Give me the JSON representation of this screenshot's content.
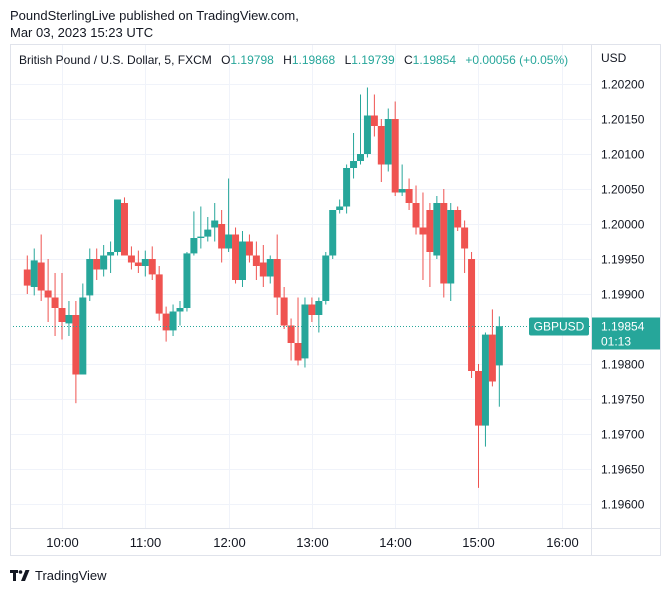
{
  "header": {
    "publisher_line": "PoundSterlingLive published on TradingView.com,",
    "date_line": "Mar 03, 2023 15:23 UTC"
  },
  "legend": {
    "symbol": "British Pound / U.S. Dollar, 5, FXCM",
    "o_label": "O",
    "o_value": "1.19798",
    "h_label": "H",
    "h_value": "1.19868",
    "l_label": "L",
    "l_value": "1.19739",
    "c_label": "C",
    "c_value": "1.19854",
    "change": "+0.00056 (+0.05%)"
  },
  "price_scale": {
    "currency": "USD",
    "ticks": [
      "1.20200",
      "1.20150",
      "1.20100",
      "1.20050",
      "1.20000",
      "1.19950",
      "1.19900",
      "1.19800",
      "1.19750",
      "1.19700",
      "1.19650",
      "1.19600"
    ]
  },
  "time_scale": {
    "ticks": [
      "10:00",
      "11:00",
      "12:00",
      "13:00",
      "14:00",
      "15:00",
      "16:00"
    ]
  },
  "last_price": {
    "symbol_badge": "GBPUSD",
    "price_badge": "1.19854",
    "countdown": "01:13"
  },
  "colors": {
    "up": "#26a69a",
    "down": "#ef5350",
    "grid": "#f0f3fa",
    "text": "#131722"
  },
  "footer": {
    "brand": "TradingView"
  },
  "chart_data": {
    "type": "candlestick",
    "interval_minutes": 5,
    "y_range": [
      1.19563,
      1.20258
    ],
    "x_range": [
      "09:35",
      "16:15"
    ],
    "candles": [
      {
        "t": "09:35",
        "o": 1.19935,
        "h": 1.19955,
        "l": 1.199,
        "c": 1.19912
      },
      {
        "t": "09:40",
        "o": 1.1991,
        "h": 1.19965,
        "l": 1.19898,
        "c": 1.19948
      },
      {
        "t": "09:45",
        "o": 1.19945,
        "h": 1.19985,
        "l": 1.1989,
        "c": 1.19905
      },
      {
        "t": "09:50",
        "o": 1.19905,
        "h": 1.1995,
        "l": 1.1986,
        "c": 1.19895
      },
      {
        "t": "09:55",
        "o": 1.19895,
        "h": 1.1993,
        "l": 1.1984,
        "c": 1.1988
      },
      {
        "t": "10:00",
        "o": 1.1988,
        "h": 1.1993,
        "l": 1.19835,
        "c": 1.1986
      },
      {
        "t": "10:05",
        "o": 1.19858,
        "h": 1.1989,
        "l": 1.1984,
        "c": 1.1987
      },
      {
        "t": "10:10",
        "o": 1.1987,
        "h": 1.1989,
        "l": 1.19744,
        "c": 1.19785
      },
      {
        "t": "10:15",
        "o": 1.19785,
        "h": 1.19915,
        "l": 1.19785,
        "c": 1.19895
      },
      {
        "t": "10:20",
        "o": 1.19898,
        "h": 1.19965,
        "l": 1.1989,
        "c": 1.1995
      },
      {
        "t": "10:25",
        "o": 1.1995,
        "h": 1.19965,
        "l": 1.1992,
        "c": 1.19935
      },
      {
        "t": "10:30",
        "o": 1.19935,
        "h": 1.1997,
        "l": 1.19925,
        "c": 1.19955
      },
      {
        "t": "10:35",
        "o": 1.19955,
        "h": 1.19975,
        "l": 1.1993,
        "c": 1.1996
      },
      {
        "t": "10:40",
        "o": 1.1996,
        "h": 1.20035,
        "l": 1.19955,
        "c": 1.20035
      },
      {
        "t": "10:45",
        "o": 1.2003,
        "h": 1.20038,
        "l": 1.19955,
        "c": 1.19955
      },
      {
        "t": "10:50",
        "o": 1.19955,
        "h": 1.19968,
        "l": 1.19935,
        "c": 1.19945
      },
      {
        "t": "10:55",
        "o": 1.19945,
        "h": 1.19962,
        "l": 1.1993,
        "c": 1.1994
      },
      {
        "t": "11:00",
        "o": 1.1994,
        "h": 1.19962,
        "l": 1.19925,
        "c": 1.1995
      },
      {
        "t": "11:05",
        "o": 1.1995,
        "h": 1.19968,
        "l": 1.1992,
        "c": 1.19928
      },
      {
        "t": "11:10",
        "o": 1.19928,
        "h": 1.1994,
        "l": 1.19862,
        "c": 1.19872
      },
      {
        "t": "11:15",
        "o": 1.19872,
        "h": 1.19882,
        "l": 1.19832,
        "c": 1.19848
      },
      {
        "t": "11:20",
        "o": 1.19848,
        "h": 1.19885,
        "l": 1.1984,
        "c": 1.19875
      },
      {
        "t": "11:25",
        "o": 1.19875,
        "h": 1.1989,
        "l": 1.19855,
        "c": 1.1988
      },
      {
        "t": "11:30",
        "o": 1.1988,
        "h": 1.1996,
        "l": 1.19875,
        "c": 1.19958
      },
      {
        "t": "11:35",
        "o": 1.19958,
        "h": 1.20018,
        "l": 1.19955,
        "c": 1.1998
      },
      {
        "t": "11:40",
        "o": 1.1998,
        "h": 1.20025,
        "l": 1.19965,
        "c": 1.19982
      },
      {
        "t": "11:45",
        "o": 1.19982,
        "h": 1.2001,
        "l": 1.19975,
        "c": 1.19992
      },
      {
        "t": "11:50",
        "o": 1.19995,
        "h": 1.2003,
        "l": 1.19975,
        "c": 1.20005
      },
      {
        "t": "11:55",
        "o": 1.2,
        "h": 1.2002,
        "l": 1.19945,
        "c": 1.19965
      },
      {
        "t": "12:00",
        "o": 1.19965,
        "h": 1.20065,
        "l": 1.1996,
        "c": 1.19985
      },
      {
        "t": "12:05",
        "o": 1.19985,
        "h": 1.19995,
        "l": 1.19915,
        "c": 1.1992
      },
      {
        "t": "12:10",
        "o": 1.1992,
        "h": 1.1999,
        "l": 1.1991,
        "c": 1.19975
      },
      {
        "t": "12:15",
        "o": 1.19975,
        "h": 1.19985,
        "l": 1.19945,
        "c": 1.19955
      },
      {
        "t": "12:20",
        "o": 1.19955,
        "h": 1.19975,
        "l": 1.1992,
        "c": 1.1994
      },
      {
        "t": "12:25",
        "o": 1.19945,
        "h": 1.1997,
        "l": 1.1991,
        "c": 1.19925
      },
      {
        "t": "12:30",
        "o": 1.19925,
        "h": 1.19955,
        "l": 1.19915,
        "c": 1.1995
      },
      {
        "t": "12:35",
        "o": 1.1995,
        "h": 1.19985,
        "l": 1.1987,
        "c": 1.19895
      },
      {
        "t": "12:40",
        "o": 1.19895,
        "h": 1.1991,
        "l": 1.1985,
        "c": 1.19855
      },
      {
        "t": "12:45",
        "o": 1.19855,
        "h": 1.19865,
        "l": 1.19805,
        "c": 1.1983
      },
      {
        "t": "12:50",
        "o": 1.1983,
        "h": 1.19895,
        "l": 1.19798,
        "c": 1.19805
      },
      {
        "t": "12:55",
        "o": 1.19808,
        "h": 1.19895,
        "l": 1.19795,
        "c": 1.19885
      },
      {
        "t": "13:00",
        "o": 1.19885,
        "h": 1.19895,
        "l": 1.1986,
        "c": 1.1987
      },
      {
        "t": "13:05",
        "o": 1.1987,
        "h": 1.19895,
        "l": 1.19845,
        "c": 1.1989
      },
      {
        "t": "13:10",
        "o": 1.1989,
        "h": 1.1996,
        "l": 1.19885,
        "c": 1.19955
      },
      {
        "t": "13:15",
        "o": 1.19955,
        "h": 1.2002,
        "l": 1.1995,
        "c": 1.2002
      },
      {
        "t": "13:20",
        "o": 1.2002,
        "h": 1.20035,
        "l": 1.20015,
        "c": 1.20025
      },
      {
        "t": "13:25",
        "o": 1.20025,
        "h": 1.20085,
        "l": 1.20015,
        "c": 1.2008
      },
      {
        "t": "13:30",
        "o": 1.2008,
        "h": 1.2013,
        "l": 1.20065,
        "c": 1.2009
      },
      {
        "t": "13:35",
        "o": 1.2009,
        "h": 1.20185,
        "l": 1.20085,
        "c": 1.201
      },
      {
        "t": "13:40",
        "o": 1.201,
        "h": 1.20195,
        "l": 1.20095,
        "c": 1.20155
      },
      {
        "t": "13:45",
        "o": 1.20155,
        "h": 1.20185,
        "l": 1.20125,
        "c": 1.2014
      },
      {
        "t": "13:50",
        "o": 1.2014,
        "h": 1.2015,
        "l": 1.2006,
        "c": 1.20085
      },
      {
        "t": "13:55",
        "o": 1.20085,
        "h": 1.20165,
        "l": 1.20075,
        "c": 1.2015
      },
      {
        "t": "14:00",
        "o": 1.2015,
        "h": 1.20175,
        "l": 1.2004,
        "c": 1.20045
      },
      {
        "t": "14:05",
        "o": 1.20045,
        "h": 1.20085,
        "l": 1.2004,
        "c": 1.2005
      },
      {
        "t": "14:10",
        "o": 1.2005,
        "h": 1.20065,
        "l": 1.2002,
        "c": 1.2003
      },
      {
        "t": "14:15",
        "o": 1.2003,
        "h": 1.20055,
        "l": 1.19985,
        "c": 1.19995
      },
      {
        "t": "14:20",
        "o": 1.19995,
        "h": 1.20045,
        "l": 1.1992,
        "c": 1.19985
      },
      {
        "t": "14:25",
        "o": 1.2002,
        "h": 1.2003,
        "l": 1.1991,
        "c": 1.1996
      },
      {
        "t": "14:30",
        "o": 1.19955,
        "h": 1.2004,
        "l": 1.1995,
        "c": 1.2003
      },
      {
        "t": "14:35",
        "o": 1.2003,
        "h": 1.2005,
        "l": 1.19895,
        "c": 1.19915
      },
      {
        "t": "14:40",
        "o": 1.19915,
        "h": 1.2003,
        "l": 1.1989,
        "c": 1.2002
      },
      {
        "t": "14:45",
        "o": 1.2002,
        "h": 1.20025,
        "l": 1.1999,
        "c": 1.19995
      },
      {
        "t": "14:50",
        "o": 1.19995,
        "h": 1.20005,
        "l": 1.1993,
        "c": 1.19965
      },
      {
        "t": "14:55",
        "o": 1.1995,
        "h": 1.1996,
        "l": 1.1978,
        "c": 1.1979
      },
      {
        "t": "15:00",
        "o": 1.1979,
        "h": 1.198,
        "l": 1.19623,
        "c": 1.19712
      },
      {
        "t": "15:05",
        "o": 1.19712,
        "h": 1.19845,
        "l": 1.19682,
        "c": 1.19842
      },
      {
        "t": "15:10",
        "o": 1.19842,
        "h": 1.19878,
        "l": 1.19768,
        "c": 1.19775
      },
      {
        "t": "15:15",
        "o": 1.19798,
        "h": 1.19868,
        "l": 1.19739,
        "c": 1.19854
      }
    ]
  }
}
